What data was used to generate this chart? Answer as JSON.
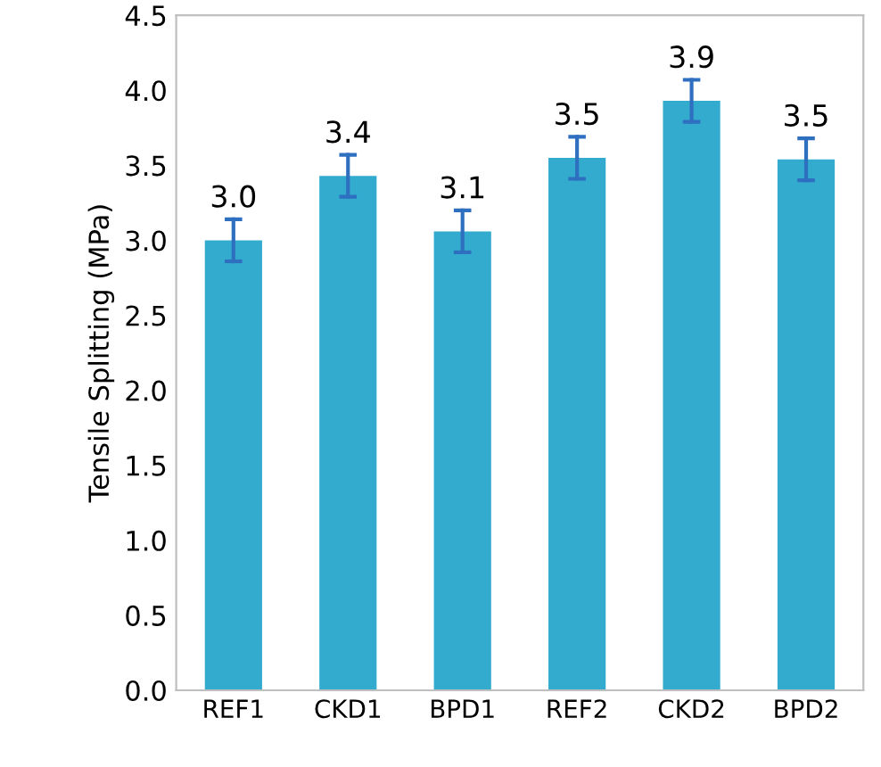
{
  "chart_data": {
    "type": "bar",
    "ylabel": "Tensile Splitting (MPa)",
    "categories": [
      "REF1",
      "CKD1",
      "BPD1",
      "REF2",
      "CKD2",
      "BPD2"
    ],
    "values": [
      3.0,
      3.43,
      3.06,
      3.55,
      3.93,
      3.54
    ],
    "errors": [
      0.14,
      0.14,
      0.14,
      0.14,
      0.14,
      0.14
    ],
    "value_labels": [
      "3.0",
      "3.4",
      "3.1",
      "3.5",
      "3.9",
      "3.5"
    ],
    "color": "#33abcf",
    "ylim": [
      0,
      4.5
    ],
    "yticks": [
      {
        "value": 0,
        "label": "0.0"
      },
      {
        "value": 0.5,
        "label": "0.5"
      },
      {
        "value": 1,
        "label": "1.0"
      },
      {
        "value": 1.5,
        "label": "1.5"
      },
      {
        "value": 2,
        "label": "2.0"
      },
      {
        "value": 2.5,
        "label": "2.5"
      },
      {
        "value": 3,
        "label": "3.0"
      },
      {
        "value": 3.5,
        "label": "3.5"
      },
      {
        "value": 4,
        "label": "4.0"
      },
      {
        "value": 4.5,
        "label": "4.5"
      }
    ],
    "grid": false,
    "legend": false
  }
}
